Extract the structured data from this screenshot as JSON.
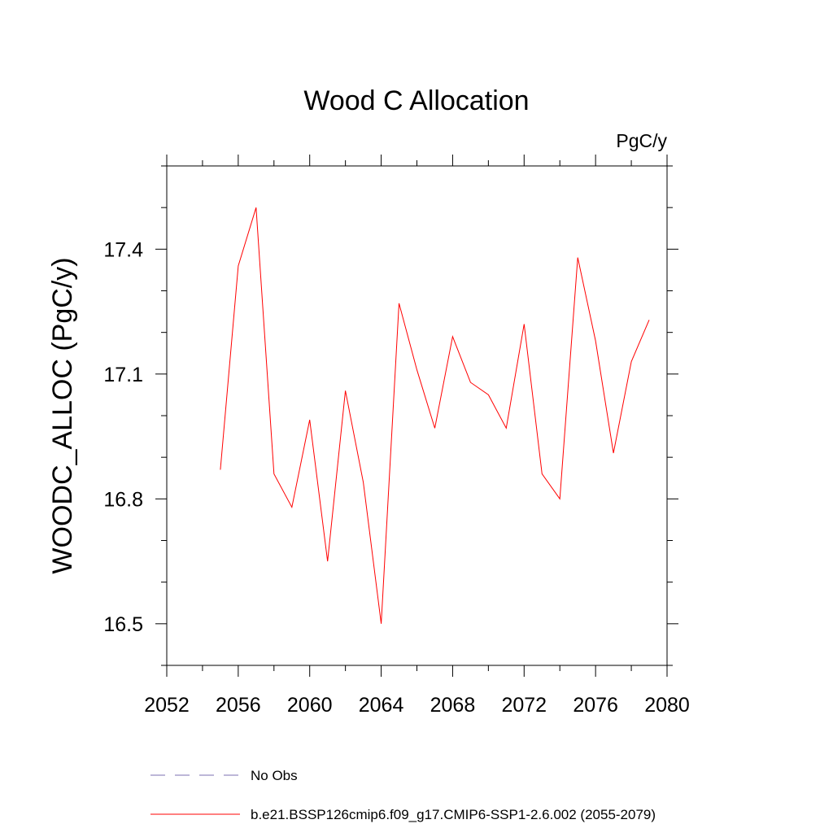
{
  "chart_data": {
    "type": "line",
    "title": "Wood C Allocation",
    "units": "PgC/y",
    "xlabel": "",
    "ylabel": "WOODC_ALLOC  (PgC/y)",
    "xlim": [
      2052,
      2080
    ],
    "ylim": [
      16.4,
      17.6
    ],
    "xticks": [
      2052,
      2056,
      2060,
      2064,
      2068,
      2072,
      2076,
      2080
    ],
    "yticks": [
      16.5,
      16.8,
      17.1,
      17.4
    ],
    "x_minor_step": 2,
    "y_minor_step": 0.1,
    "grid": false,
    "series": [
      {
        "name": "b.e21.BSSP126cmip6.f09_g17.CMIP6-SSP1-2.6.002 (2055-2079)",
        "color": "#ff0000",
        "x": [
          2055,
          2056,
          2057,
          2058,
          2059,
          2060,
          2061,
          2062,
          2063,
          2064,
          2065,
          2066,
          2067,
          2068,
          2069,
          2070,
          2071,
          2072,
          2073,
          2074,
          2075,
          2076,
          2077,
          2078,
          2079
        ],
        "y": [
          16.87,
          17.36,
          17.5,
          16.86,
          16.78,
          16.99,
          16.65,
          17.06,
          16.84,
          16.5,
          17.27,
          17.11,
          16.97,
          17.19,
          17.08,
          17.05,
          16.97,
          17.22,
          16.86,
          16.8,
          17.38,
          17.18,
          16.91,
          17.13,
          17.23
        ]
      }
    ],
    "legend": {
      "placement": "bottom",
      "entries": [
        {
          "label": "No Obs",
          "color": "#7b6fb0",
          "style": "dashed"
        },
        {
          "label": "b.e21.BSSP126cmip6.f09_g17.CMIP6-SSP1-2.6.002 (2055-2079)",
          "color": "#ff0000",
          "style": "solid"
        }
      ]
    }
  }
}
